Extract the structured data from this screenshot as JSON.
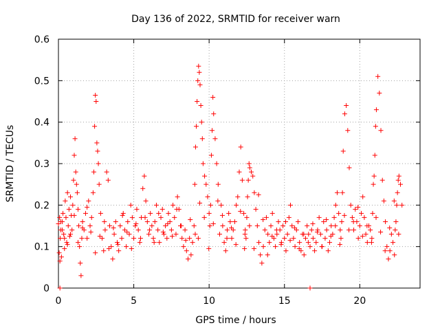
{
  "chart_data": {
    "type": "scatter",
    "title": "Day 136 of 2022, SRMTID for receiver warn",
    "xlabel": "GPS time / hours",
    "ylabel": "SRMTID / TECUs",
    "xlim": [
      0,
      24
    ],
    "ylim": [
      0,
      0.6
    ],
    "grid": true,
    "x_ticks": [
      0,
      5,
      10,
      15,
      20
    ],
    "x_tick_labels": [
      "0",
      "5",
      "10",
      "15",
      "20"
    ],
    "y_ticks": [
      0,
      0.1,
      0.2,
      0.3,
      0.4,
      0.5,
      0.6
    ],
    "y_tick_labels": [
      "0",
      "0.1",
      "0.2",
      "0.3",
      "0.4",
      "0.5",
      "0.6"
    ],
    "series": [
      {
        "name": "SRMTID",
        "color": "#ff0000",
        "marker": "plus",
        "x": [
          0.0,
          0.05,
          0.1,
          0.12,
          0.15,
          0.2,
          0.25,
          0.3,
          0.35,
          0.4,
          0.45,
          0.5,
          0.55,
          0.6,
          0.65,
          0.7,
          0.75,
          0.8,
          0.85,
          0.9,
          0.95,
          1.0,
          1.05,
          1.1,
          1.15,
          1.2,
          1.25,
          1.3,
          1.35,
          1.4,
          1.45,
          1.5,
          1.55,
          1.6,
          1.7,
          1.8,
          1.9,
          2.0,
          2.1,
          2.2,
          2.3,
          2.35,
          2.4,
          2.45,
          2.5,
          2.55,
          2.6,
          2.65,
          2.7,
          2.8,
          2.9,
          3.0,
          3.1,
          3.2,
          3.3,
          3.4,
          3.5,
          3.6,
          3.7,
          3.8,
          3.9,
          4.0,
          4.1,
          4.2,
          4.3,
          4.4,
          4.5,
          4.6,
          4.7,
          4.8,
          4.9,
          5.0,
          5.1,
          5.2,
          5.3,
          5.4,
          5.5,
          5.6,
          5.7,
          5.8,
          5.9,
          6.0,
          6.1,
          6.2,
          6.3,
          6.4,
          6.5,
          6.6,
          6.7,
          6.8,
          6.9,
          7.0,
          7.1,
          7.2,
          7.3,
          7.4,
          7.5,
          7.6,
          7.7,
          7.8,
          7.9,
          8.0,
          8.1,
          8.2,
          8.3,
          8.4,
          8.5,
          8.6,
          8.7,
          8.8,
          8.9,
          9.0,
          9.05,
          9.1,
          9.15,
          9.2,
          9.25,
          9.3,
          9.35,
          9.4,
          9.45,
          9.5,
          9.55,
          9.6,
          9.7,
          9.8,
          9.9,
          10.0,
          10.05,
          10.1,
          10.15,
          10.2,
          10.25,
          10.3,
          10.4,
          10.5,
          10.6,
          10.7,
          10.8,
          10.9,
          11.0,
          11.1,
          11.2,
          11.3,
          11.4,
          11.5,
          11.6,
          11.7,
          11.8,
          11.9,
          12.0,
          12.1,
          12.2,
          12.3,
          12.4,
          12.45,
          12.5,
          12.55,
          12.6,
          12.65,
          12.7,
          12.8,
          12.9,
          13.0,
          13.1,
          13.2,
          13.3,
          13.4,
          13.5,
          13.6,
          13.7,
          13.8,
          13.9,
          14.0,
          14.1,
          14.2,
          14.3,
          14.4,
          14.5,
          14.6,
          14.7,
          14.8,
          14.9,
          15.0,
          15.1,
          15.2,
          15.3,
          15.4,
          15.5,
          15.6,
          15.7,
          15.8,
          15.9,
          16.0,
          16.1,
          16.2,
          16.3,
          16.4,
          16.5,
          16.6,
          16.7,
          16.8,
          16.9,
          17.0,
          17.1,
          17.2,
          17.3,
          17.4,
          17.5,
          17.6,
          17.7,
          17.8,
          17.9,
          18.0,
          18.1,
          18.2,
          18.3,
          18.4,
          18.5,
          18.6,
          18.7,
          18.75,
          18.8,
          18.85,
          18.9,
          19.0,
          19.1,
          19.2,
          19.3,
          19.4,
          19.5,
          19.6,
          19.7,
          19.8,
          19.9,
          20.0,
          20.1,
          20.2,
          20.3,
          20.4,
          20.5,
          20.6,
          20.7,
          20.8,
          20.85,
          20.9,
          20.95,
          21.0,
          21.05,
          21.1,
          21.2,
          21.3,
          21.4,
          21.5,
          21.6,
          21.7,
          21.8,
          21.9,
          22.0,
          22.1,
          22.2,
          22.3,
          22.35,
          22.4,
          22.45,
          22.5,
          22.55,
          22.6,
          22.7,
          22.8,
          0.08,
          0.15,
          0.25,
          0.4,
          0.6,
          0.8,
          1.05,
          1.3,
          1.6,
          1.9,
          2.15,
          2.45,
          2.75,
          3.05,
          3.35,
          3.65,
          3.95,
          4.25,
          4.55,
          4.85,
          5.15,
          5.45,
          5.75,
          6.05,
          6.35,
          6.65,
          6.95,
          7.25,
          7.55,
          7.85,
          8.15,
          8.45,
          8.75,
          9.08,
          9.38,
          9.68,
          9.98,
          10.28,
          10.58,
          10.88,
          11.18,
          11.48,
          11.78,
          12.08,
          12.38,
          12.68,
          12.98,
          13.28,
          13.58,
          13.88,
          14.18,
          14.48,
          14.78,
          15.08,
          15.38,
          15.68,
          15.98,
          16.28,
          16.58,
          16.88,
          17.18,
          17.48,
          17.78,
          18.08,
          18.38,
          18.68,
          18.98,
          19.28,
          19.58,
          19.88,
          20.18,
          20.48,
          20.78,
          21.08,
          21.38,
          21.68,
          21.98,
          22.28,
          22.58,
          16.7,
          0.1,
          12.35,
          9.28
        ],
        "y": [
          0.155,
          0.085,
          0.065,
          0.12,
          0.14,
          0.075,
          0.16,
          0.18,
          0.13,
          0.095,
          0.21,
          0.17,
          0.11,
          0.23,
          0.15,
          0.19,
          0.125,
          0.22,
          0.175,
          0.14,
          0.2,
          0.26,
          0.32,
          0.36,
          0.28,
          0.25,
          0.23,
          0.19,
          0.15,
          0.1,
          0.06,
          0.03,
          0.12,
          0.16,
          0.14,
          0.18,
          0.12,
          0.21,
          0.15,
          0.17,
          0.23,
          0.28,
          0.39,
          0.465,
          0.45,
          0.35,
          0.33,
          0.3,
          0.25,
          0.18,
          0.12,
          0.09,
          0.14,
          0.28,
          0.26,
          0.15,
          0.1,
          0.07,
          0.13,
          0.16,
          0.11,
          0.09,
          0.15,
          0.12,
          0.18,
          0.14,
          0.1,
          0.16,
          0.13,
          0.2,
          0.17,
          0.12,
          0.15,
          0.19,
          0.14,
          0.11,
          0.17,
          0.24,
          0.27,
          0.21,
          0.16,
          0.13,
          0.18,
          0.15,
          0.12,
          0.16,
          0.2,
          0.14,
          0.11,
          0.17,
          0.19,
          0.13,
          0.15,
          0.12,
          0.18,
          0.16,
          0.14,
          0.2,
          0.17,
          0.13,
          0.22,
          0.19,
          0.15,
          0.12,
          0.1,
          0.14,
          0.09,
          0.07,
          0.12,
          0.08,
          0.11,
          0.15,
          0.25,
          0.34,
          0.39,
          0.45,
          0.5,
          0.535,
          0.52,
          0.49,
          0.44,
          0.4,
          0.36,
          0.3,
          0.27,
          0.25,
          0.22,
          0.18,
          0.15,
          0.2,
          0.32,
          0.38,
          0.46,
          0.42,
          0.36,
          0.3,
          0.25,
          0.13,
          0.2,
          0.15,
          0.11,
          0.09,
          0.14,
          0.18,
          0.16,
          0.12,
          0.14,
          0.16,
          0.2,
          0.22,
          0.28,
          0.34,
          0.26,
          0.18,
          0.14,
          0.12,
          0.17,
          0.22,
          0.26,
          0.3,
          0.29,
          0.28,
          0.27,
          0.23,
          0.19,
          0.15,
          0.11,
          0.08,
          0.06,
          0.1,
          0.14,
          0.17,
          0.13,
          0.11,
          0.15,
          0.18,
          0.12,
          0.1,
          0.13,
          0.16,
          0.14,
          0.11,
          0.15,
          0.12,
          0.09,
          0.13,
          0.17,
          0.2,
          0.15,
          0.12,
          0.1,
          0.14,
          0.16,
          0.11,
          0.09,
          0.13,
          0.08,
          0.12,
          0.15,
          0.13,
          0.1,
          0.14,
          0.12,
          0.09,
          0.11,
          0.14,
          0.17,
          0.13,
          0.1,
          0.16,
          0.12,
          0.14,
          0.09,
          0.11,
          0.15,
          0.13,
          0.17,
          0.2,
          0.23,
          0.18,
          0.14,
          0.12,
          0.16,
          0.23,
          0.33,
          0.42,
          0.44,
          0.38,
          0.29,
          0.2,
          0.17,
          0.14,
          0.19,
          0.16,
          0.12,
          0.15,
          0.18,
          0.22,
          0.17,
          0.13,
          0.11,
          0.15,
          0.14,
          0.12,
          0.18,
          0.25,
          0.27,
          0.32,
          0.39,
          0.43,
          0.51,
          0.47,
          0.38,
          0.26,
          0.21,
          0.16,
          0.1,
          0.07,
          0.09,
          0.13,
          0.11,
          0.08,
          0.14,
          0.16,
          0.2,
          0.23,
          0.26,
          0.27,
          0.25,
          0.2,
          0.17,
          0.16,
          0.14,
          0.12,
          0.105,
          0.13,
          0.175,
          0.11,
          0.145,
          0.195,
          0.135,
          0.085,
          0.125,
          0.16,
          0.095,
          0.145,
          0.105,
          0.175,
          0.135,
          0.095,
          0.155,
          0.12,
          0.17,
          0.14,
          0.11,
          0.18,
          0.135,
          0.155,
          0.125,
          0.19,
          0.15,
          0.115,
          0.165,
          0.13,
          0.205,
          0.17,
          0.095,
          0.155,
          0.21,
          0.175,
          0.12,
          0.145,
          0.105,
          0.185,
          0.13,
          0.15,
          0.095,
          0.225,
          0.165,
          0.08,
          0.125,
          0.14,
          0.105,
          0.16,
          0.115,
          0.145,
          0.095,
          0.13,
          0.11,
          0.155,
          0.135,
          0.1,
          0.165,
          0.125,
          0.15,
          0.105,
          0.175,
          0.14,
          0.16,
          0.195,
          0.125,
          0.15,
          0.11,
          0.17,
          0.135,
          0.09,
          0.145,
          0.21,
          0.13,
          0.0,
          0.0,
          0.095,
          0.12
        ]
      }
    ]
  }
}
